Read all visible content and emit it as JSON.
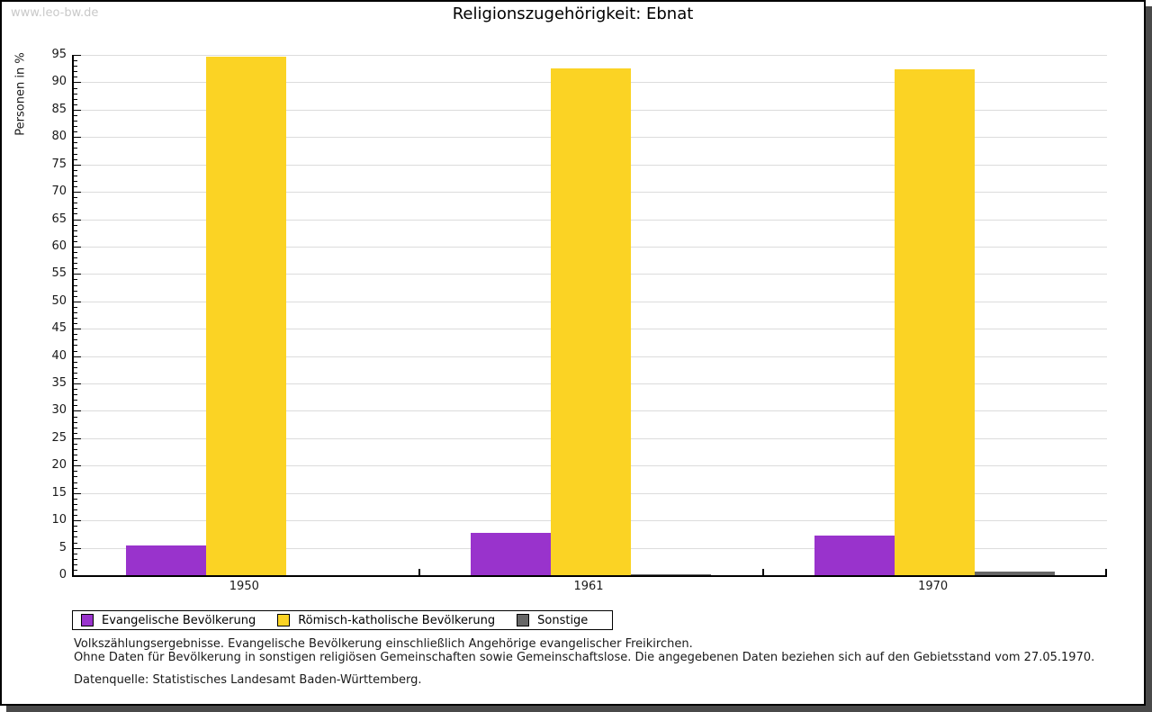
{
  "watermark": "www.leo-bw.de",
  "title": "Religionszugehörigkeit: Ebnat",
  "chart_data": {
    "type": "bar",
    "title": "Religionszugehörigkeit: Ebnat",
    "xlabel": "",
    "ylabel": "Personen in %",
    "ylim": [
      0,
      95
    ],
    "y_major_step": 5,
    "y_minor_step": 1,
    "grid": true,
    "legend_position": "bottom",
    "categories": [
      "1950",
      "1961",
      "1970"
    ],
    "series": [
      {
        "name": "Evangelische Bevölkerung",
        "color": "#9933cc",
        "values": [
          5.5,
          7.7,
          7.3
        ]
      },
      {
        "name": "Römisch-katholische Bevölkerung",
        "color": "#fbd324",
        "values": [
          94.7,
          92.5,
          92.3
        ]
      },
      {
        "name": "Sonstige",
        "color": "#666666",
        "values": [
          0.0,
          0.2,
          0.7
        ]
      }
    ]
  },
  "colors": {
    "evangelisch": "#9933cc",
    "katholisch": "#fbd324",
    "sonstige": "#666666",
    "gridline": "#dcdcdc",
    "watermark": "#c9c9c9",
    "frame_shadow": "#4a4a4a"
  },
  "footnotes": {
    "line1": "Volkszählungsergebnisse. Evangelische Bevölkerung einschließlich Angehörige evangelischer Freikirchen.",
    "line2": "Ohne Daten für Bevölkerung in sonstigen religiösen Gemeinschaften sowie Gemeinschaftslose. Die angegebenen Daten beziehen sich auf den Gebietsstand vom 27.05.1970.",
    "source": "Datenquelle: Statistisches Landesamt Baden-Württemberg."
  }
}
